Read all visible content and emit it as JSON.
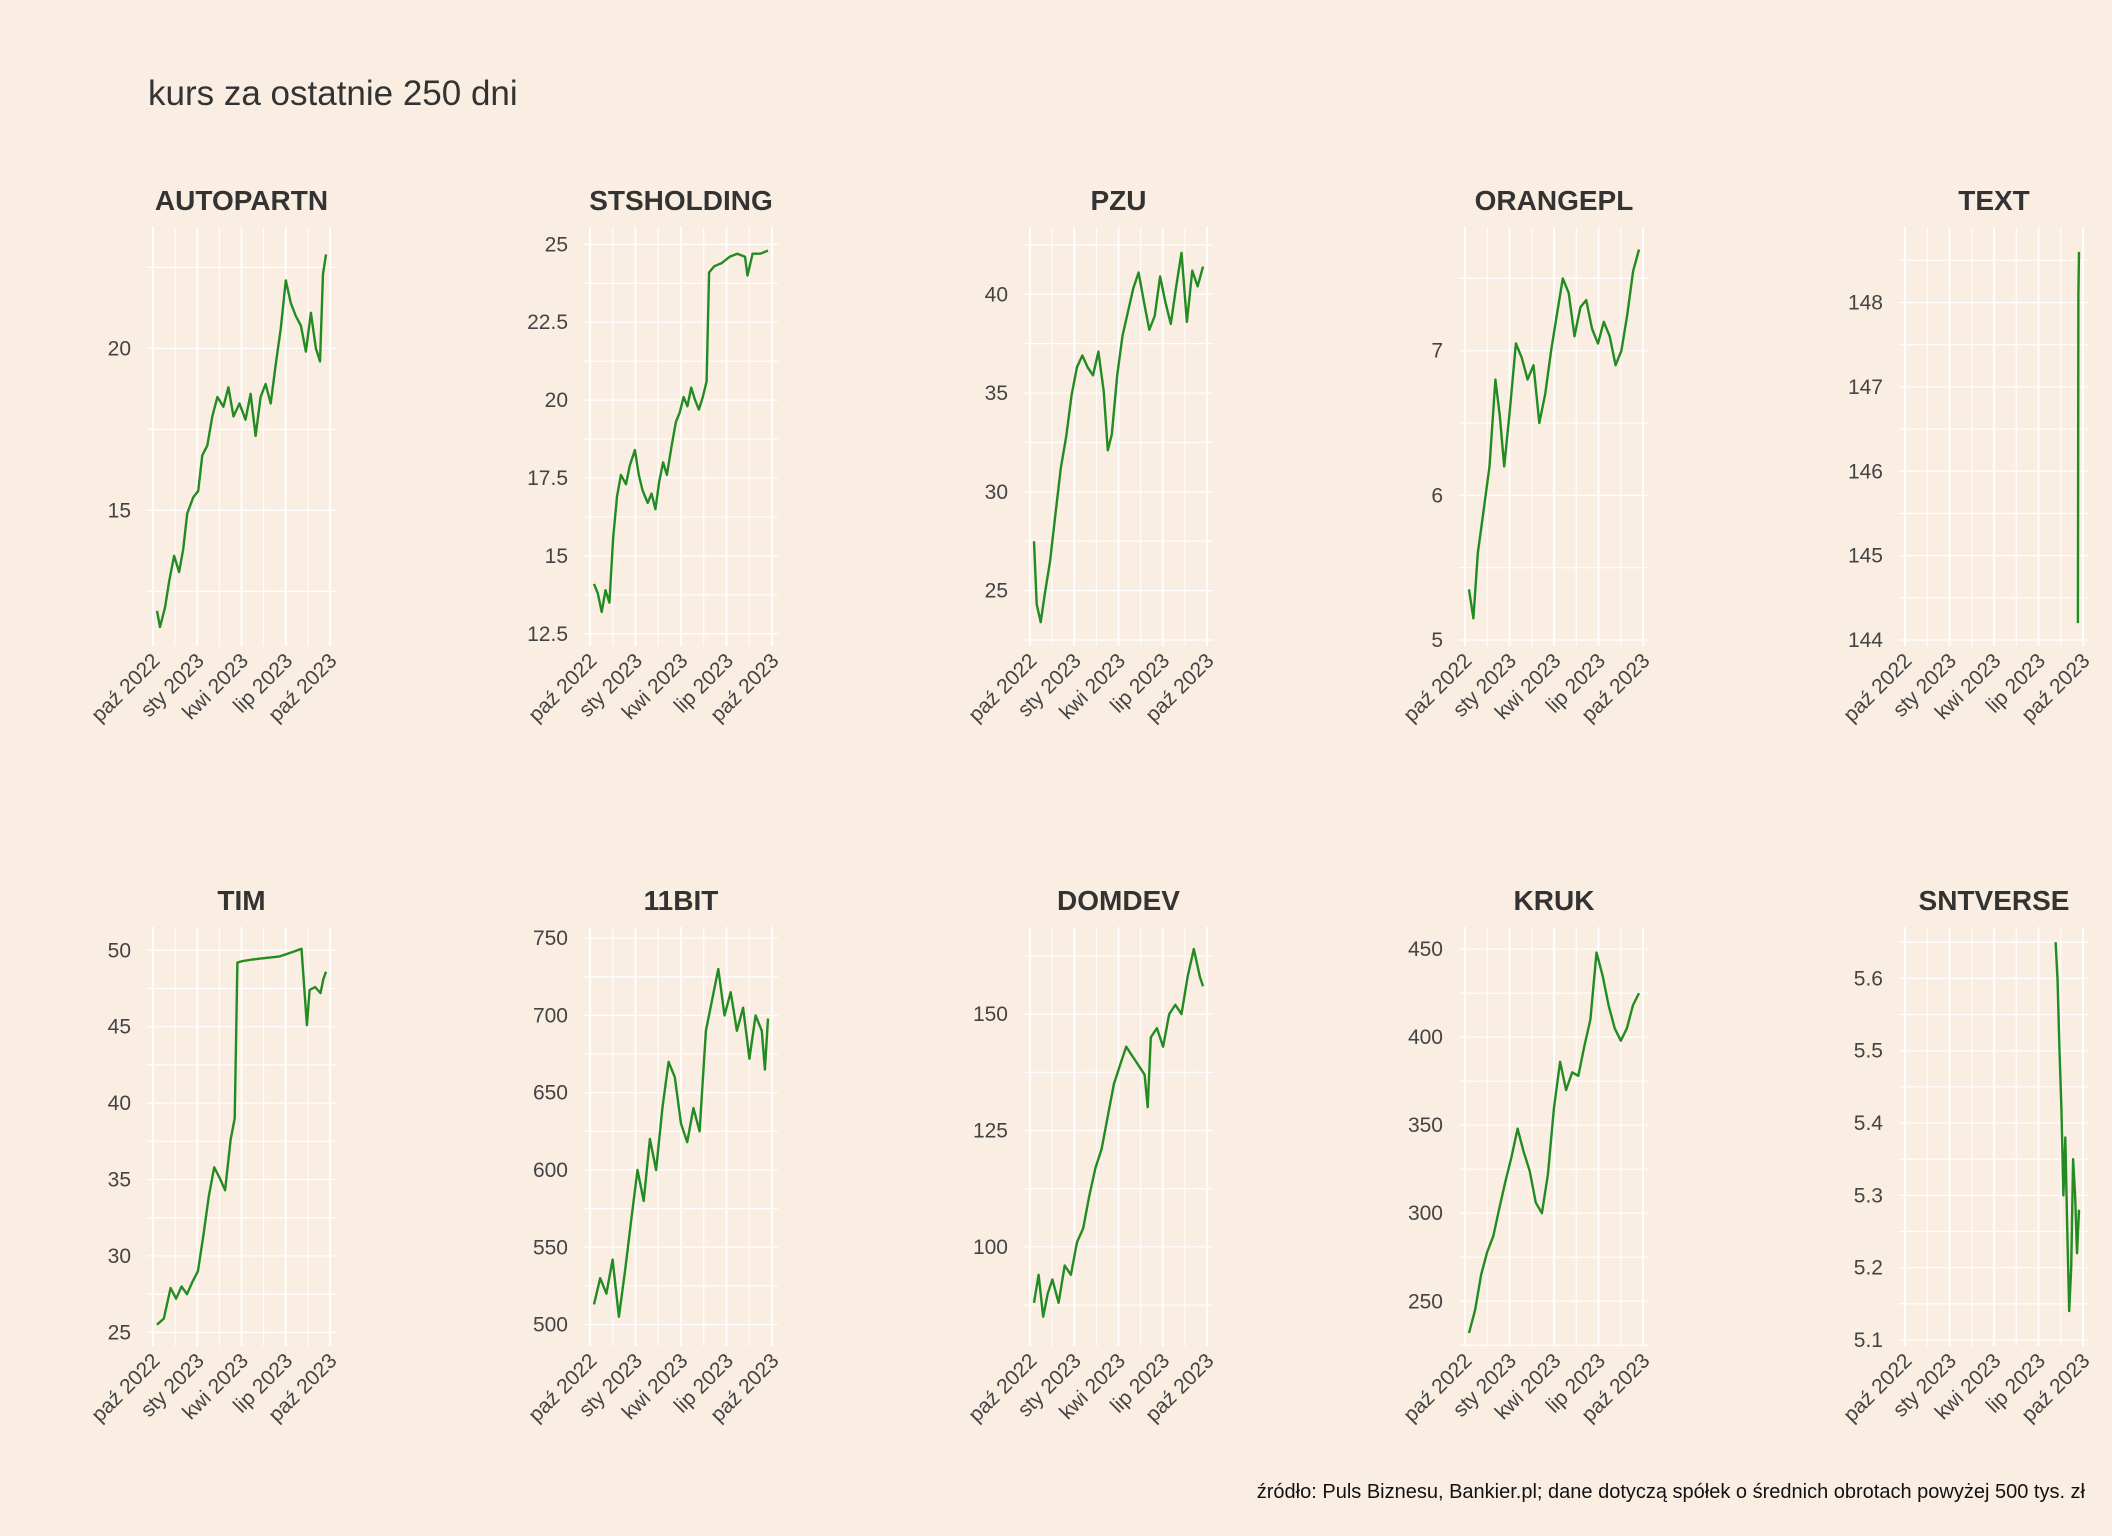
{
  "title": "kurs za ostatnie 250 dni",
  "caption": "źródło: Puls Biznesu, Bankier.pl; dane dotyczą spółek o średnich obrotach powyżej 500 tys. zł",
  "colors": {
    "background": "#FAEEE2",
    "grid": "#FFFFFF",
    "line": "#228B22",
    "text": "#444444"
  },
  "chart_data": [
    {
      "type": "line",
      "title": "AUTOPARTN",
      "x_ticks": [
        "paź 2022",
        "sty 2023",
        "kwi 2023",
        "lip 2023",
        "paź 2023"
      ],
      "y_ticks": [
        15,
        20
      ],
      "ylim": [
        11,
        23.5
      ],
      "grid": true,
      "points": [
        [
          0,
          11.9
        ],
        [
          3,
          11.4
        ],
        [
          8,
          12.0
        ],
        [
          12,
          12.8
        ],
        [
          17,
          13.6
        ],
        [
          22,
          13.1
        ],
        [
          26,
          13.8
        ],
        [
          30,
          14.9
        ],
        [
          36,
          15.4
        ],
        [
          41,
          15.6
        ],
        [
          45,
          16.7
        ],
        [
          50,
          17.0
        ],
        [
          55,
          17.9
        ],
        [
          60,
          18.5
        ],
        [
          66,
          18.2
        ],
        [
          71,
          18.8
        ],
        [
          76,
          17.9
        ],
        [
          82,
          18.3
        ],
        [
          88,
          17.8
        ],
        [
          93,
          18.6
        ],
        [
          98,
          17.3
        ],
        [
          103,
          18.5
        ],
        [
          108,
          18.9
        ],
        [
          113,
          18.3
        ],
        [
          118,
          19.5
        ],
        [
          123,
          20.6
        ],
        [
          128,
          22.1
        ],
        [
          133,
          21.4
        ],
        [
          138,
          21.0
        ],
        [
          143,
          20.7
        ],
        [
          148,
          19.9
        ],
        [
          153,
          21.1
        ],
        [
          158,
          20.0
        ],
        [
          162,
          19.6
        ],
        [
          165,
          22.3
        ],
        [
          168,
          22.9
        ]
      ]
    },
    {
      "type": "line",
      "title": "STSHOLDING",
      "x_ticks": [
        "paź 2022",
        "sty 2023",
        "kwi 2023",
        "lip 2023",
        "paź 2023"
      ],
      "y_ticks": [
        12.5,
        15.0,
        17.5,
        20.0,
        22.5,
        25.0
      ],
      "ylim": [
        12.3,
        25.3
      ],
      "grid": true,
      "points": [
        [
          0,
          14.1
        ],
        [
          3,
          13.8
        ],
        [
          6,
          13.2
        ],
        [
          9,
          13.9
        ],
        [
          12,
          13.5
        ],
        [
          15,
          15.6
        ],
        [
          18,
          16.9
        ],
        [
          21,
          17.6
        ],
        [
          25,
          17.3
        ],
        [
          28,
          17.9
        ],
        [
          32,
          18.4
        ],
        [
          35,
          17.6
        ],
        [
          38,
          17.1
        ],
        [
          42,
          16.7
        ],
        [
          45,
          17.0
        ],
        [
          48,
          16.5
        ],
        [
          51,
          17.4
        ],
        [
          54,
          18.0
        ],
        [
          57,
          17.6
        ],
        [
          61,
          18.6
        ],
        [
          64,
          19.3
        ],
        [
          67,
          19.6
        ],
        [
          70,
          20.1
        ],
        [
          73,
          19.8
        ],
        [
          76,
          20.4
        ],
        [
          79,
          20.0
        ],
        [
          82,
          19.7
        ],
        [
          85,
          20.1
        ],
        [
          88,
          20.6
        ],
        [
          90,
          24.1
        ],
        [
          94,
          24.3
        ],
        [
          100,
          24.4
        ],
        [
          106,
          24.6
        ],
        [
          112,
          24.7
        ],
        [
          118,
          24.6
        ],
        [
          120,
          24.0
        ],
        [
          124,
          24.7
        ],
        [
          130,
          24.7
        ],
        [
          136,
          24.8
        ]
      ]
    },
    {
      "type": "line",
      "title": "PZU",
      "x_ticks": [
        "paź 2022",
        "sty 2023",
        "kwi 2023",
        "lip 2023",
        "paź 2023"
      ],
      "y_ticks": [
        25,
        30,
        35,
        40
      ],
      "ylim": [
        22.5,
        43
      ],
      "grid": true,
      "points": [
        [
          0,
          27.5
        ],
        [
          2,
          24.3
        ],
        [
          5,
          23.4
        ],
        [
          8,
          24.8
        ],
        [
          12,
          26.5
        ],
        [
          16,
          28.9
        ],
        [
          20,
          31.2
        ],
        [
          24,
          32.8
        ],
        [
          28,
          34.9
        ],
        [
          32,
          36.3
        ],
        [
          36,
          36.9
        ],
        [
          40,
          36.3
        ],
        [
          44,
          35.9
        ],
        [
          48,
          37.1
        ],
        [
          52,
          35.1
        ],
        [
          55,
          32.1
        ],
        [
          58,
          32.9
        ],
        [
          62,
          35.9
        ],
        [
          66,
          37.9
        ],
        [
          70,
          39.1
        ],
        [
          74,
          40.3
        ],
        [
          78,
          41.1
        ],
        [
          82,
          39.6
        ],
        [
          86,
          38.2
        ],
        [
          90,
          38.9
        ],
        [
          94,
          40.9
        ],
        [
          98,
          39.6
        ],
        [
          102,
          38.5
        ],
        [
          106,
          40.4
        ],
        [
          110,
          42.1
        ],
        [
          114,
          38.6
        ],
        [
          118,
          41.2
        ],
        [
          122,
          40.4
        ],
        [
          126,
          41.4
        ]
      ]
    },
    {
      "type": "line",
      "title": "ORANGEPL",
      "x_ticks": [
        "paź 2022",
        "sty 2023",
        "kwi 2023",
        "lip 2023",
        "paź 2023"
      ],
      "y_ticks": [
        5,
        6,
        7
      ],
      "ylim": [
        5.0,
        7.8
      ],
      "grid": true,
      "points": [
        [
          0,
          5.35
        ],
        [
          3,
          5.15
        ],
        [
          6,
          5.6
        ],
        [
          10,
          5.9
        ],
        [
          14,
          6.2
        ],
        [
          18,
          6.8
        ],
        [
          21,
          6.55
        ],
        [
          24,
          6.2
        ],
        [
          28,
          6.6
        ],
        [
          32,
          7.05
        ],
        [
          36,
          6.95
        ],
        [
          40,
          6.8
        ],
        [
          44,
          6.9
        ],
        [
          48,
          6.5
        ],
        [
          52,
          6.7
        ],
        [
          56,
          7.0
        ],
        [
          60,
          7.25
        ],
        [
          64,
          7.5
        ],
        [
          68,
          7.4
        ],
        [
          72,
          7.1
        ],
        [
          76,
          7.3
        ],
        [
          80,
          7.35
        ],
        [
          84,
          7.15
        ],
        [
          88,
          7.05
        ],
        [
          92,
          7.2
        ],
        [
          96,
          7.1
        ],
        [
          100,
          6.9
        ],
        [
          104,
          7.0
        ],
        [
          108,
          7.25
        ],
        [
          112,
          7.55
        ],
        [
          116,
          7.7
        ]
      ]
    },
    {
      "type": "line",
      "title": "TEXT",
      "x_ticks": [
        "paź 2022",
        "sty 2023",
        "kwi 2023",
        "lip 2023",
        "paź 2023"
      ],
      "y_ticks": [
        144,
        145,
        146,
        147,
        148
      ],
      "ylim": [
        144,
        148.8
      ],
      "grid": true,
      "points": [
        [
          0,
          144.2
        ],
        [
          0.5,
          148.1
        ],
        [
          1,
          148.6
        ]
      ]
    },
    {
      "type": "line",
      "title": "TIM",
      "x_ticks": [
        "paź 2022",
        "sty 2023",
        "kwi 2023",
        "lip 2023",
        "paź 2023"
      ],
      "y_ticks": [
        25,
        30,
        35,
        40,
        45,
        50
      ],
      "ylim": [
        24.5,
        51
      ],
      "grid": true,
      "points": [
        [
          0,
          25.5
        ],
        [
          5,
          25.9
        ],
        [
          10,
          27.9
        ],
        [
          14,
          27.2
        ],
        [
          18,
          28.0
        ],
        [
          22,
          27.5
        ],
        [
          26,
          28.3
        ],
        [
          30,
          29.0
        ],
        [
          34,
          31.3
        ],
        [
          38,
          33.9
        ],
        [
          42,
          35.8
        ],
        [
          46,
          35.1
        ],
        [
          50,
          34.3
        ],
        [
          54,
          37.6
        ],
        [
          57,
          39.0
        ],
        [
          59,
          49.2
        ],
        [
          63,
          49.3
        ],
        [
          70,
          49.4
        ],
        [
          80,
          49.5
        ],
        [
          90,
          49.6
        ],
        [
          100,
          49.9
        ],
        [
          106,
          50.1
        ],
        [
          108,
          47.6
        ],
        [
          110,
          45.1
        ],
        [
          112,
          47.4
        ],
        [
          116,
          47.6
        ],
        [
          120,
          47.2
        ],
        [
          122,
          48.1
        ],
        [
          124,
          48.6
        ]
      ]
    },
    {
      "type": "line",
      "title": "11BIT",
      "x_ticks": [
        "paź 2022",
        "sty 2023",
        "kwi 2023",
        "lip 2023",
        "paź 2023"
      ],
      "y_ticks": [
        500,
        550,
        600,
        650,
        700,
        750
      ],
      "ylim": [
        490,
        752
      ],
      "grid": true,
      "points": [
        [
          0,
          513
        ],
        [
          4,
          530
        ],
        [
          8,
          520
        ],
        [
          12,
          542
        ],
        [
          16,
          505
        ],
        [
          20,
          535
        ],
        [
          24,
          568
        ],
        [
          28,
          600
        ],
        [
          32,
          580
        ],
        [
          36,
          620
        ],
        [
          40,
          600
        ],
        [
          44,
          640
        ],
        [
          48,
          670
        ],
        [
          52,
          660
        ],
        [
          56,
          630
        ],
        [
          60,
          618
        ],
        [
          64,
          640
        ],
        [
          68,
          625
        ],
        [
          72,
          690
        ],
        [
          76,
          710
        ],
        [
          80,
          730
        ],
        [
          84,
          700
        ],
        [
          88,
          715
        ],
        [
          92,
          690
        ],
        [
          96,
          705
        ],
        [
          100,
          672
        ],
        [
          104,
          700
        ],
        [
          108,
          690
        ],
        [
          110,
          665
        ],
        [
          112,
          698
        ]
      ]
    },
    {
      "type": "line",
      "title": "DOMDEV",
      "x_ticks": [
        "paź 2022",
        "sty 2023",
        "kwi 2023",
        "lip 2023",
        "paź 2023"
      ],
      "y_ticks": [
        100,
        125,
        150
      ],
      "ylim": [
        80,
        167
      ],
      "grid": true,
      "points": [
        [
          0,
          88
        ],
        [
          3,
          94
        ],
        [
          6,
          85
        ],
        [
          9,
          90
        ],
        [
          12,
          93
        ],
        [
          16,
          88
        ],
        [
          20,
          96
        ],
        [
          24,
          94
        ],
        [
          28,
          101
        ],
        [
          32,
          104
        ],
        [
          36,
          111
        ],
        [
          40,
          117
        ],
        [
          44,
          121
        ],
        [
          48,
          128
        ],
        [
          52,
          135
        ],
        [
          56,
          139
        ],
        [
          60,
          143
        ],
        [
          64,
          141
        ],
        [
          68,
          139
        ],
        [
          72,
          137
        ],
        [
          74,
          130
        ],
        [
          76,
          145
        ],
        [
          80,
          147
        ],
        [
          84,
          143
        ],
        [
          88,
          150
        ],
        [
          92,
          152
        ],
        [
          96,
          150
        ],
        [
          100,
          158
        ],
        [
          104,
          164
        ],
        [
          108,
          158
        ],
        [
          110,
          156
        ]
      ]
    },
    {
      "type": "line",
      "title": "KRUK",
      "x_ticks": [
        "paź 2022",
        "sty 2023",
        "kwi 2023",
        "lip 2023",
        "paź 2023"
      ],
      "y_ticks": [
        250,
        300,
        350,
        400,
        450
      ],
      "ylim": [
        228,
        458
      ],
      "grid": true,
      "points": [
        [
          0,
          232
        ],
        [
          4,
          245
        ],
        [
          8,
          265
        ],
        [
          12,
          278
        ],
        [
          16,
          287
        ],
        [
          20,
          303
        ],
        [
          24,
          318
        ],
        [
          28,
          332
        ],
        [
          32,
          348
        ],
        [
          36,
          335
        ],
        [
          40,
          324
        ],
        [
          44,
          306
        ],
        [
          48,
          300
        ],
        [
          52,
          322
        ],
        [
          56,
          360
        ],
        [
          60,
          386
        ],
        [
          64,
          370
        ],
        [
          68,
          380
        ],
        [
          72,
          378
        ],
        [
          76,
          395
        ],
        [
          80,
          410
        ],
        [
          84,
          448
        ],
        [
          88,
          435
        ],
        [
          92,
          418
        ],
        [
          96,
          405
        ],
        [
          100,
          398
        ],
        [
          104,
          405
        ],
        [
          108,
          418
        ],
        [
          112,
          425
        ]
      ]
    },
    {
      "type": "line",
      "title": "SNTVERSE",
      "x_ticks": [
        "paź 2022",
        "sty 2023",
        "kwi 2023",
        "lip 2023",
        "paź 2023"
      ],
      "y_ticks": [
        5.1,
        5.2,
        5.3,
        5.4,
        5.5,
        5.6
      ],
      "ylim": [
        5.1,
        5.66
      ],
      "grid": true,
      "points": [
        [
          0,
          5.65
        ],
        [
          2,
          5.6
        ],
        [
          4,
          5.5
        ],
        [
          6,
          5.42
        ],
        [
          8,
          5.3
        ],
        [
          10,
          5.38
        ],
        [
          12,
          5.25
        ],
        [
          14,
          5.14
        ],
        [
          16,
          5.2
        ],
        [
          18,
          5.35
        ],
        [
          20,
          5.3
        ],
        [
          22,
          5.22
        ],
        [
          24,
          5.28
        ]
      ]
    }
  ]
}
